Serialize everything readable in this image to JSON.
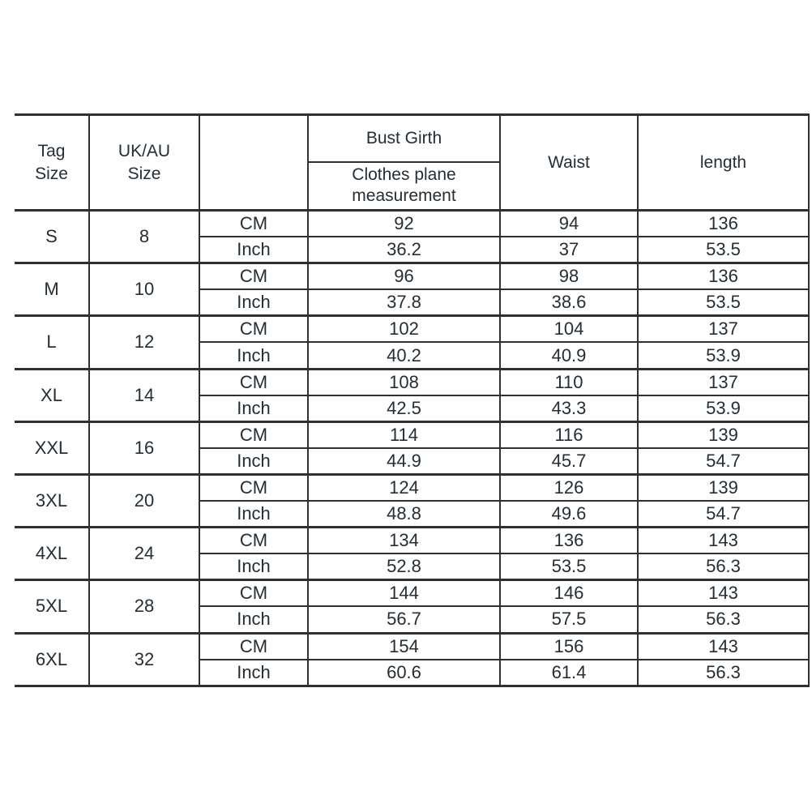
{
  "colors": {
    "text": "#242e36",
    "line": "#303030",
    "background": "#ffffff"
  },
  "chart_data": {
    "type": "table",
    "title": "",
    "header": {
      "tag_size": "Tag Size",
      "ukau_size": "UK/AU Size",
      "unit_column": "",
      "bust_girth": "Bust Girth",
      "bust_girth_sub": "Clothes plane measurement",
      "waist": "Waist",
      "length": "length"
    },
    "unit_labels": [
      "CM",
      "Inch"
    ],
    "rows": [
      {
        "tag": "S",
        "uk": "8",
        "cm": [
          "92",
          "94",
          "136"
        ],
        "inch": [
          "36.2",
          "37",
          "53.5"
        ]
      },
      {
        "tag": "M",
        "uk": "10",
        "cm": [
          "96",
          "98",
          "136"
        ],
        "inch": [
          "37.8",
          "38.6",
          "53.5"
        ]
      },
      {
        "tag": "L",
        "uk": "12",
        "cm": [
          "102",
          "104",
          "137"
        ],
        "inch": [
          "40.2",
          "40.9",
          "53.9"
        ]
      },
      {
        "tag": "XL",
        "uk": "14",
        "cm": [
          "108",
          "110",
          "137"
        ],
        "inch": [
          "42.5",
          "43.3",
          "53.9"
        ]
      },
      {
        "tag": "XXL",
        "uk": "16",
        "cm": [
          "114",
          "116",
          "139"
        ],
        "inch": [
          "44.9",
          "45.7",
          "54.7"
        ]
      },
      {
        "tag": "3XL",
        "uk": "20",
        "cm": [
          "124",
          "126",
          "139"
        ],
        "inch": [
          "48.8",
          "49.6",
          "54.7"
        ]
      },
      {
        "tag": "4XL",
        "uk": "24",
        "cm": [
          "134",
          "136",
          "143"
        ],
        "inch": [
          "52.8",
          "53.5",
          "56.3"
        ]
      },
      {
        "tag": "5XL",
        "uk": "28",
        "cm": [
          "144",
          "146",
          "143"
        ],
        "inch": [
          "56.7",
          "57.5",
          "56.3"
        ]
      },
      {
        "tag": "6XL",
        "uk": "32",
        "cm": [
          "154",
          "156",
          "143"
        ],
        "inch": [
          "60.6",
          "61.4",
          "56.3"
        ]
      }
    ]
  }
}
